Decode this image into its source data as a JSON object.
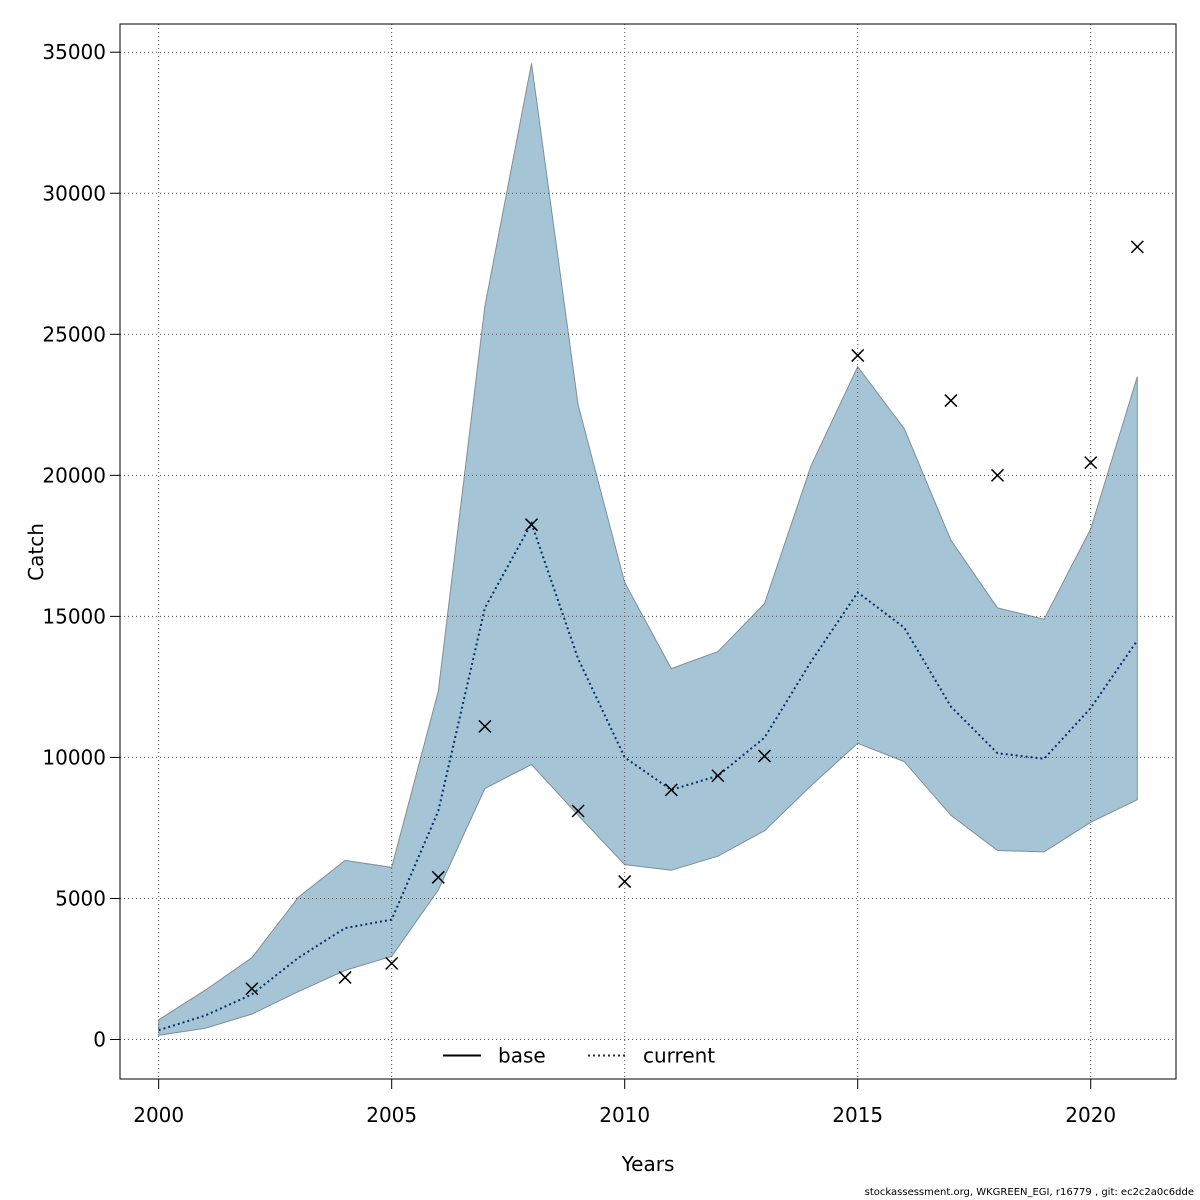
{
  "chart_data": {
    "type": "line",
    "xlabel": "Years",
    "ylabel": "Catch",
    "xlim": [
      1999.17,
      2021.83
    ],
    "ylim": [
      -1400,
      36000
    ],
    "x_ticks": [
      2000,
      2005,
      2010,
      2015,
      2020
    ],
    "y_ticks": [
      0,
      5000,
      10000,
      15000,
      20000,
      25000,
      30000,
      35000
    ],
    "grid": true,
    "band_color": "#a5c4d5",
    "band_edge_color": "#7f8f99",
    "line_color": "#08306b",
    "legend_position": "bottom-center",
    "legend": [
      {
        "label": "base",
        "style": "solid",
        "color": "#000000"
      },
      {
        "label": "current",
        "style": "dotted",
        "color": "#08306b"
      }
    ],
    "years": [
      2000,
      2001,
      2002,
      2003,
      2004,
      2005,
      2006,
      2007,
      2008,
      2009,
      2010,
      2011,
      2012,
      2013,
      2014,
      2015,
      2016,
      2017,
      2018,
      2019,
      2020,
      2021
    ],
    "series": [
      {
        "name": "current",
        "values": [
          330,
          850,
          1600,
          2900,
          3950,
          4250,
          8100,
          15300,
          18300,
          13500,
          10000,
          8850,
          9350,
          10700,
          13400,
          15850,
          14600,
          11800,
          10150,
          9950,
          11750,
          14150
        ]
      }
    ],
    "band": {
      "lower": [
        150,
        400,
        900,
        1700,
        2450,
        2950,
        5300,
        8900,
        9750,
        7950,
        6200,
        6000,
        6500,
        7400,
        9000,
        10500,
        9850,
        7950,
        6700,
        6650,
        7700,
        8500
      ],
      "upper": [
        700,
        1750,
        2900,
        5050,
        6350,
        6100,
        12350,
        26000,
        34600,
        22500,
        16200,
        13150,
        13750,
        15450,
        20350,
        23850,
        21650,
        17700,
        15300,
        14900,
        18100,
        23500
      ]
    },
    "observations": {
      "marker": "x",
      "years": [
        2002,
        2004,
        2005,
        2006,
        2007,
        2008,
        2009,
        2010,
        2011,
        2012,
        2013,
        2015,
        2017,
        2018,
        2020,
        2021
      ],
      "values": [
        1800,
        2200,
        2700,
        5750,
        11100,
        18250,
        8100,
        5600,
        8850,
        9350,
        10050,
        24250,
        22650,
        20000,
        20450,
        28100
      ]
    }
  },
  "footer": "stockassessment.org, WKGREEN_EGI, r16779 , git: ec2c2a0c6dde"
}
